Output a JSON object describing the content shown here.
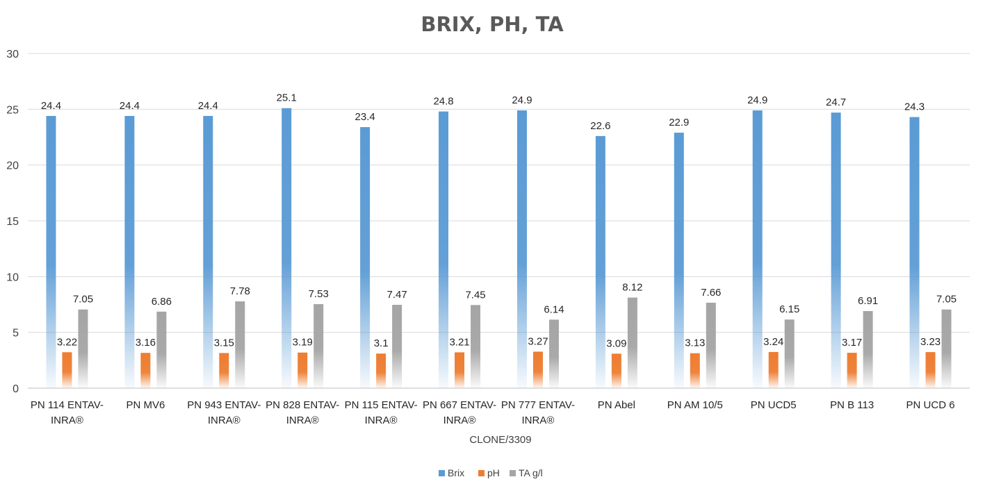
{
  "chart_data": {
    "type": "bar",
    "title": "BRIX, PH, TA",
    "xlabel": "CLONE/3309",
    "ylabel": "",
    "ylim": [
      0,
      30
    ],
    "yticks": [
      0,
      5,
      10,
      15,
      20,
      25,
      30
    ],
    "grid": true,
    "legend_position": "bottom",
    "categories": [
      [
        "PN 114 ENTAV-",
        "INRA®"
      ],
      [
        "PN MV6"
      ],
      [
        "PN 943 ENTAV-",
        "INRA®"
      ],
      [
        "PN 828 ENTAV-",
        "INRA®"
      ],
      [
        "PN 115 ENTAV-",
        "INRA®"
      ],
      [
        "PN 667 ENTAV-",
        "INRA®"
      ],
      [
        "PN 777 ENTAV-",
        "INRA®"
      ],
      [
        "PN Abel"
      ],
      [
        "PN AM 10/5"
      ],
      [
        "PN UCD5"
      ],
      [
        "PN B 113"
      ],
      [
        "PN UCD 6"
      ]
    ],
    "series": [
      {
        "name": "Brix",
        "color": "#5b9bd5",
        "values": [
          24.4,
          24.4,
          24.4,
          25.1,
          23.4,
          24.8,
          24.9,
          22.6,
          22.9,
          24.9,
          24.7,
          24.3
        ],
        "labels": [
          "24.4",
          "24.4",
          "24.4",
          "25.1",
          "23.4",
          "24.8",
          "24.9",
          "22.6",
          "22.9",
          "24.9",
          "24.7",
          "24.3"
        ]
      },
      {
        "name": "pH",
        "color": "#ed7d31",
        "values": [
          3.22,
          3.16,
          3.15,
          3.19,
          3.1,
          3.21,
          3.27,
          3.09,
          3.13,
          3.24,
          3.17,
          3.23
        ],
        "labels": [
          "3.22",
          "3.16",
          "3.15",
          "3.19",
          "3.1",
          "3.21",
          "3.27",
          "3.09",
          "3.13",
          "3.24",
          "3.17",
          "3.23"
        ]
      },
      {
        "name": "TA g/l",
        "color": "#a5a5a5",
        "values": [
          7.05,
          6.86,
          7.78,
          7.53,
          7.47,
          7.45,
          6.14,
          8.12,
          7.66,
          6.15,
          6.91,
          7.05
        ],
        "labels": [
          "7.05",
          "6.86",
          "7.78",
          "7.53",
          "7.47",
          "7.45",
          "6.14",
          "8.12",
          "7.66",
          "6.15",
          "6.91",
          "7.05"
        ]
      }
    ]
  }
}
